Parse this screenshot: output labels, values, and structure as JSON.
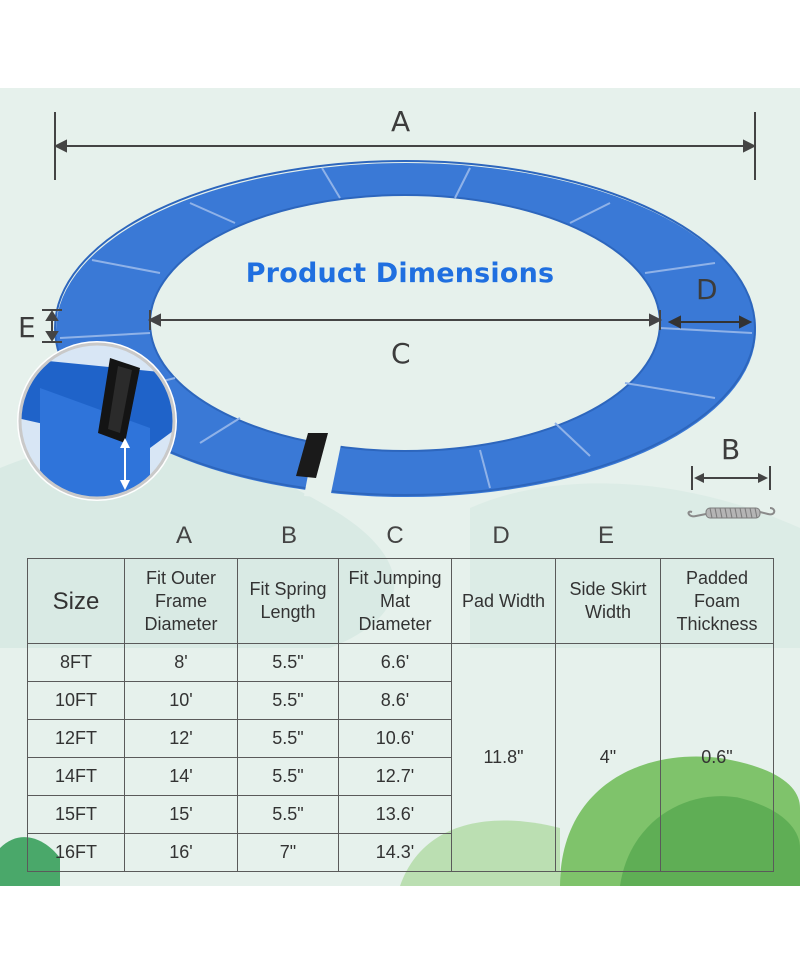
{
  "title": "Product Dimensions",
  "diagram_labels": {
    "A": "A",
    "B": "B",
    "C": "C",
    "D": "D",
    "E": "E"
  },
  "colors": {
    "pad_blue": "#3a79d6",
    "headline_blue": "#1f6fe0",
    "background": "#e6f1ec"
  },
  "column_letters": [
    "A",
    "B",
    "C",
    "D",
    "E"
  ],
  "table": {
    "headers": [
      "Size",
      "Fit Outer Frame Diameter",
      "Fit Spring Length",
      "Fit Jumping Mat Diameter",
      "Pad Width",
      "Side Skirt Width",
      "Padded Foam Thickness"
    ],
    "header_lines": [
      [
        "Size"
      ],
      [
        "Fit Outer",
        "Frame",
        "Diameter"
      ],
      [
        "Fit Spring",
        "Length"
      ],
      [
        "Fit Jumping",
        "Mat",
        "Diameter"
      ],
      [
        "Pad Width"
      ],
      [
        "Side Skirt",
        "Width"
      ],
      [
        "Padded",
        "Foam",
        "Thickness"
      ]
    ],
    "rows": [
      {
        "size": "8FT",
        "outer": "8'",
        "spring": "5.5\"",
        "mat": "6.6'"
      },
      {
        "size": "10FT",
        "outer": "10'",
        "spring": "5.5\"",
        "mat": "8.6'"
      },
      {
        "size": "12FT",
        "outer": "12'",
        "spring": "5.5\"",
        "mat": "10.6'"
      },
      {
        "size": "14FT",
        "outer": "14'",
        "spring": "5.5\"",
        "mat": "12.7'"
      },
      {
        "size": "15FT",
        "outer": "15'",
        "spring": "5.5\"",
        "mat": "13.6'"
      },
      {
        "size": "16FT",
        "outer": "16'",
        "spring": "7\"",
        "mat": "14.3'"
      }
    ],
    "shared": {
      "pad_width": "11.8\"",
      "side_skirt": "4\"",
      "foam_thickness": "0.6\""
    }
  }
}
